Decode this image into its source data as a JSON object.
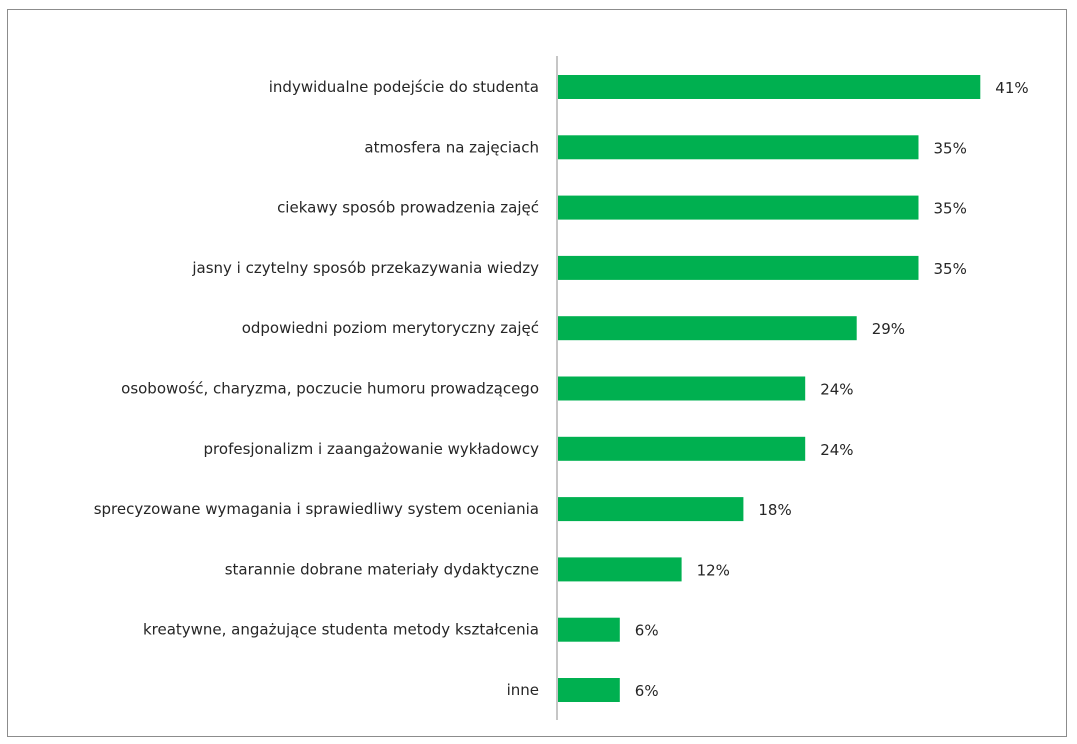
{
  "chart_data": {
    "type": "bar",
    "orientation": "horizontal",
    "title": "",
    "xlabel": "",
    "ylabel": "",
    "categories": [
      "indywidualne podejście do studenta",
      "atmosfera na zajęciach",
      "ciekawy sposób prowadzenia zajęć",
      "jasny i czytelny sposób przekazywania wiedzy",
      "odpowiedni poziom merytoryczny zajęć",
      "osobowość, charyzma, poczucie humoru prowadzącego",
      "profesjonalizm i zaangażowanie wykładowcy",
      "sprecyzowane wymagania i sprawiedliwy system oceniania",
      "starannie dobrane materiały dydaktyczne",
      "kreatywne, angażujące studenta metody kształcenia",
      "inne"
    ],
    "values": [
      41,
      35,
      35,
      35,
      29,
      24,
      24,
      18,
      12,
      6,
      6
    ],
    "value_labels": [
      "41%",
      "35%",
      "35%",
      "35%",
      "29%",
      "24%",
      "24%",
      "18%",
      "12%",
      "6%",
      "6%"
    ],
    "unit": "%",
    "grid": false,
    "legend": "none",
    "bar_color": "#00b050",
    "axis_color": "#8c8c8c"
  }
}
